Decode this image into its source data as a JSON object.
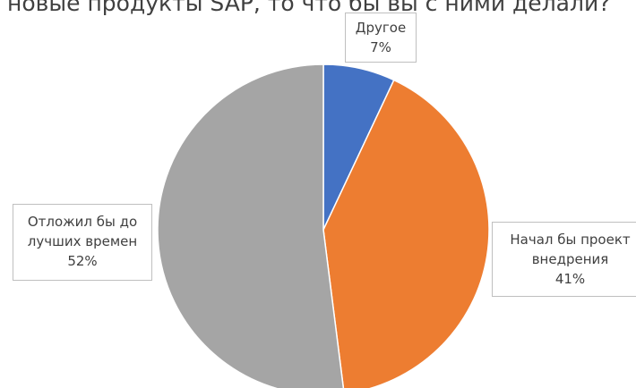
{
  "chart_data": {
    "type": "pie",
    "title": "новые продукты SAP, то что бы вы с ними делали?",
    "start_angle_deg": 0,
    "direction": "clockwise",
    "slices": [
      {
        "label_lines": [
          "Другое"
        ],
        "value": 7,
        "value_label": "7%",
        "color": "#4472c4"
      },
      {
        "label_lines": [
          "Начал бы проект",
          "внедрения"
        ],
        "value": 41,
        "value_label": "41%",
        "color": "#ed7d31"
      },
      {
        "label_lines": [
          "Отложил бы до",
          "лучших времен"
        ],
        "value": 52,
        "value_label": "52%",
        "color": "#a5a5a5"
      }
    ]
  }
}
